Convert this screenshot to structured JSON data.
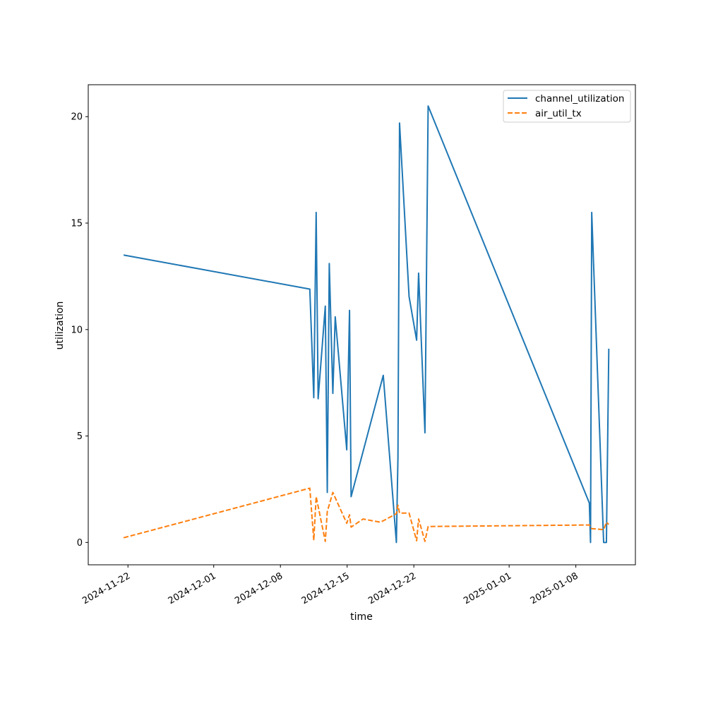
{
  "chart_data": {
    "type": "line",
    "xlabel": "time",
    "ylabel": "utilization",
    "x_axis_type": "date",
    "xlim": [
      "2024-11-17T20:00",
      "2025-01-14T06:00"
    ],
    "ylim": [
      -1.05,
      21.5
    ],
    "x_ticks": [
      "2024-11-22",
      "2024-12-01",
      "2024-12-08",
      "2024-12-15",
      "2024-12-22",
      "2025-01-01",
      "2025-01-08"
    ],
    "y_ticks": [
      0,
      5,
      10,
      15,
      20
    ],
    "grid": false,
    "legend_position": "top-right",
    "series": [
      {
        "name": "channel_utilization",
        "color": "#1f77b4",
        "dash": "solid",
        "points": [
          [
            "2024-11-21T13:00",
            13.5
          ],
          [
            "2024-12-11T02:00",
            11.9
          ],
          [
            "2024-12-11T12:00",
            6.8
          ],
          [
            "2024-12-11T18:00",
            15.5
          ],
          [
            "2024-12-11T23:00",
            6.75
          ],
          [
            "2024-12-12T17:00",
            11.1
          ],
          [
            "2024-12-12T22:00",
            2.35
          ],
          [
            "2024-12-13T03:00",
            13.1
          ],
          [
            "2024-12-13T12:00",
            7.0
          ],
          [
            "2024-12-13T18:00",
            10.6
          ],
          [
            "2024-12-14T23:00",
            4.35
          ],
          [
            "2024-12-15T06:00",
            10.9
          ],
          [
            "2024-12-15T10:00",
            2.15
          ],
          [
            "2024-12-18T19:00",
            7.85
          ],
          [
            "2024-12-20T04:00",
            0.0
          ],
          [
            "2024-12-20T08:00",
            4.0
          ],
          [
            "2024-12-20T12:00",
            19.7
          ],
          [
            "2024-12-21T12:00",
            11.55
          ],
          [
            "2024-12-22T07:00",
            9.5
          ],
          [
            "2024-12-22T12:00",
            12.65
          ],
          [
            "2024-12-23T04:00",
            5.15
          ],
          [
            "2024-12-23T12:00",
            20.5
          ],
          [
            "2025-01-09T10:00",
            1.85
          ],
          [
            "2025-01-09T13:00",
            0.0
          ],
          [
            "2025-01-09T16:00",
            15.5
          ],
          [
            "2025-01-10T22:00",
            0.0
          ],
          [
            "2025-01-11T05:00",
            0.0
          ],
          [
            "2025-01-11T11:00",
            9.1
          ]
        ]
      },
      {
        "name": "air_util_tx",
        "color": "#ff7f0e",
        "dash": "dashed",
        "points": [
          [
            "2024-11-21T13:00",
            0.22
          ],
          [
            "2024-12-11T02:00",
            2.55
          ],
          [
            "2024-12-11T12:00",
            0.1
          ],
          [
            "2024-12-11T18:00",
            2.15
          ],
          [
            "2024-12-12T17:00",
            0.05
          ],
          [
            "2024-12-12T22:00",
            1.45
          ],
          [
            "2024-12-13T12:00",
            2.35
          ],
          [
            "2024-12-14T23:00",
            0.9
          ],
          [
            "2024-12-15T06:00",
            1.3
          ],
          [
            "2024-12-15T10:00",
            0.72
          ],
          [
            "2024-12-16T16:00",
            1.1
          ],
          [
            "2024-12-18T12:00",
            0.95
          ],
          [
            "2024-12-20T04:00",
            1.35
          ],
          [
            "2024-12-20T08:00",
            1.75
          ],
          [
            "2024-12-20T12:00",
            1.38
          ],
          [
            "2024-12-21T12:00",
            1.38
          ],
          [
            "2024-12-22T07:00",
            0.08
          ],
          [
            "2024-12-22T12:00",
            1.1
          ],
          [
            "2024-12-23T04:00",
            0.05
          ],
          [
            "2024-12-23T12:00",
            0.75
          ],
          [
            "2025-01-09T10:00",
            0.82
          ],
          [
            "2025-01-09T16:00",
            0.65
          ],
          [
            "2025-01-10T22:00",
            0.6
          ],
          [
            "2025-01-11T05:00",
            0.95
          ],
          [
            "2025-01-11T11:00",
            0.85
          ]
        ]
      }
    ]
  }
}
